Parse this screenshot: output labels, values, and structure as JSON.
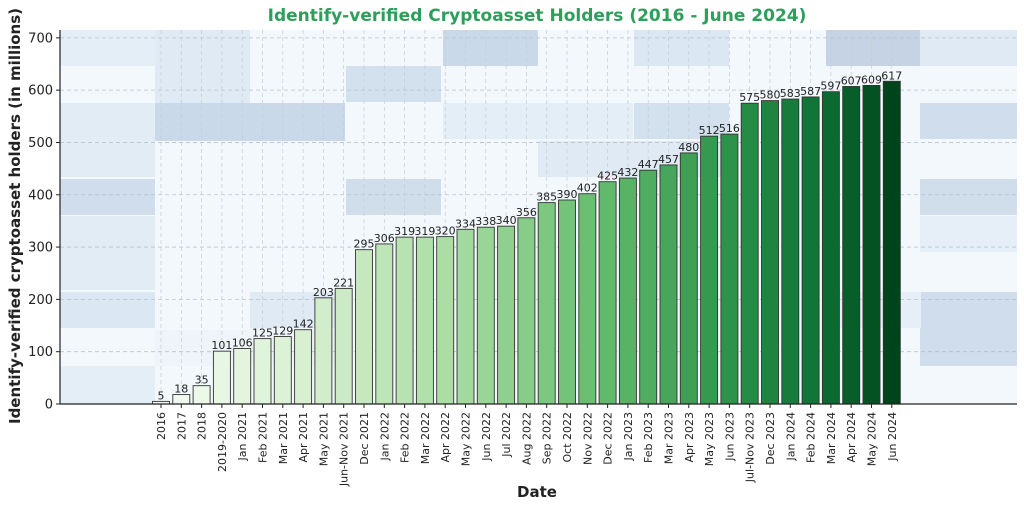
{
  "chart_data": {
    "type": "bar",
    "title": "Identify-verified Cryptoasset Holders (2016 - June 2024)",
    "xlabel": "Date",
    "ylabel": "Identify-verified cryptoasset holders (in millions)",
    "ylim": [
      0,
      715
    ],
    "yticks": [
      0,
      100,
      200,
      300,
      400,
      500,
      600,
      700
    ],
    "grid": true,
    "categories": [
      "2016",
      "2017",
      "2018",
      "2019-2020",
      "Jan 2021",
      "Feb 2021",
      "Mar 2021",
      "Apr 2021",
      "May 2021",
      "Jun-Nov 2021",
      "Dec 2021",
      "Jan 2022",
      "Feb 2022",
      "Mar 2022",
      "Apr 2022",
      "May 2022",
      "Jun 2022",
      "Jul 2022",
      "Aug 2022",
      "Sep 2022",
      "Oct 2022",
      "Nov 2022",
      "Dec 2022",
      "Jan 2023",
      "Feb 2023",
      "Mar 2023",
      "Apr 2023",
      "May 2023",
      "Jun 2023",
      "Jul-Nov 2023",
      "Dec 2023",
      "Jan 2024",
      "Feb 2024",
      "Mar 2024",
      "Apr 2024",
      "May 2024",
      "Jun 2024"
    ],
    "values": [
      5,
      18,
      35,
      101,
      106,
      125,
      129,
      142,
      203,
      221,
      295,
      306,
      319,
      319,
      320,
      334,
      338,
      340,
      356,
      385,
      390,
      402,
      425,
      432,
      447,
      457,
      480,
      512,
      516,
      575,
      580,
      583,
      587,
      597,
      607,
      609,
      617
    ],
    "colors": {
      "title": "#2e9e5b",
      "bar_gradient_start": "#f4fbf1",
      "bar_gradient_end": "#00441b",
      "bar_edge": "#333333"
    }
  }
}
